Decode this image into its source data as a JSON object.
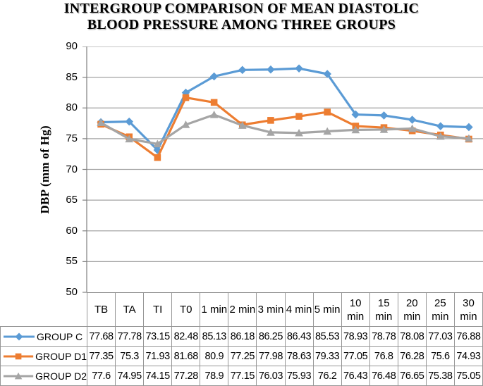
{
  "title": {
    "line1": "INTERGROUP COMPARISON OF MEAN DIASTOLIC",
    "line2": "BLOOD PRESSURE AMONG THREE GROUPS"
  },
  "chart_data": {
    "type": "line",
    "title": "INTERGROUP COMPARISON OF MEAN DIASTOLIC BLOOD PRESSURE AMONG THREE GROUPS",
    "xlabel": "",
    "ylabel": "DBP (mm of Hg)",
    "ylim": [
      50,
      90
    ],
    "yticks": [
      90,
      85,
      80,
      75,
      70,
      65,
      60,
      55,
      50
    ],
    "grid": "horizontal-major",
    "legend_position": "table-left",
    "categories": [
      "TB",
      "TA",
      "TI",
      "T0",
      "1 min",
      "2 min",
      "3 min",
      "4 min",
      "5 min",
      "10 min",
      "15 min",
      "20 min",
      "25 min",
      "30 min"
    ],
    "series": [
      {
        "name": "GROUP C",
        "color": "#5B9BD5",
        "marker": "diamond",
        "values": [
          77.68,
          77.78,
          73.15,
          82.48,
          85.13,
          86.18,
          86.25,
          86.43,
          85.53,
          78.93,
          78.78,
          78.08,
          77.03,
          76.88
        ]
      },
      {
        "name": "GROUP D1",
        "color": "#ED7D31",
        "marker": "square",
        "values": [
          77.35,
          75.3,
          71.93,
          81.68,
          80.9,
          77.25,
          77.98,
          78.63,
          79.33,
          77.05,
          76.8,
          76.28,
          75.6,
          74.93
        ]
      },
      {
        "name": "GROUP D2",
        "color": "#A5A5A5",
        "marker": "triangle",
        "values": [
          77.6,
          74.95,
          74.15,
          77.28,
          78.9,
          77.15,
          76.03,
          75.93,
          76.2,
          76.43,
          76.48,
          76.65,
          75.38,
          75.05
        ]
      }
    ]
  },
  "colors": {
    "gridline": "#A3A3A3",
    "axis": "#808080",
    "table_border": "#969696",
    "text": "#000000",
    "background": "#FFFFFF"
  }
}
